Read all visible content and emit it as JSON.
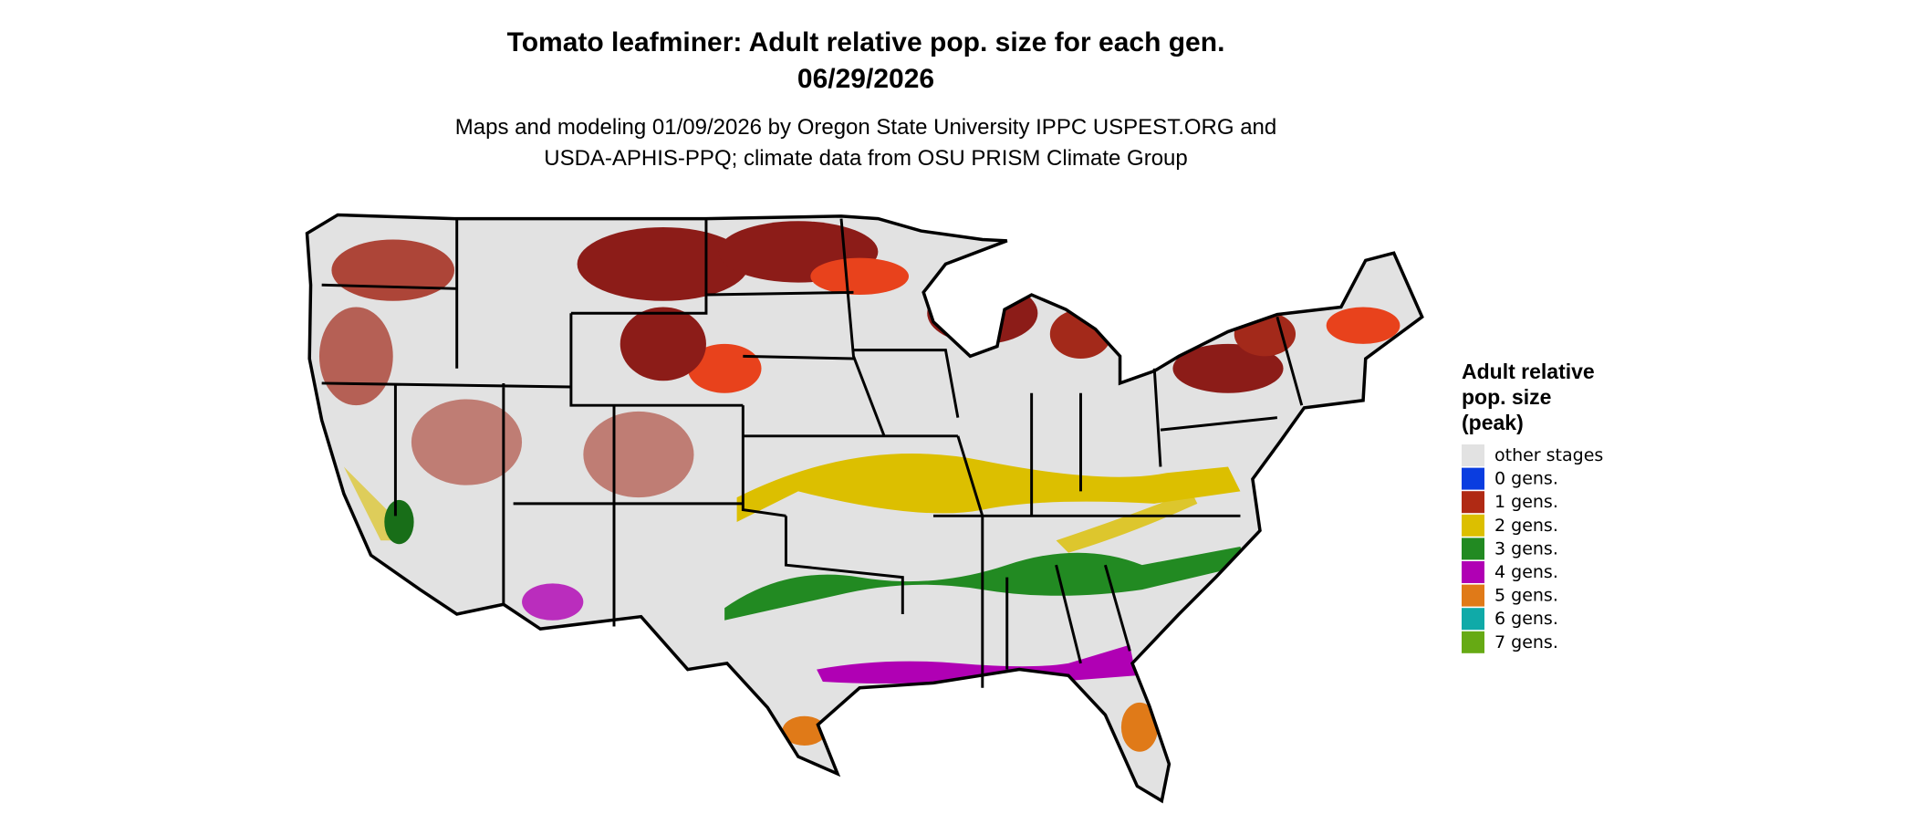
{
  "header": {
    "title": [
      "Tomato leafminer: Adult relative pop. size for each gen.",
      "06/29/2026"
    ],
    "subtitle": [
      "Maps and modeling 01/09/2026 by Oregon State University IPPC USPEST.ORG and",
      "USDA-APHIS-PPQ; climate data from OSU PRISM Climate Group"
    ]
  },
  "legend": {
    "title": [
      "Adult relative",
      "pop. size",
      "(peak)"
    ],
    "items": [
      {
        "label": "other stages",
        "color": "#e2e2e2"
      },
      {
        "label": "0 gens.",
        "color": "#0a3de0"
      },
      {
        "label": "1 gens.",
        "color": "#b02a14"
      },
      {
        "label": "2 gens.",
        "color": "#dcbf00"
      },
      {
        "label": "3 gens.",
        "color": "#228a22"
      },
      {
        "label": "4 gens.",
        "color": "#b000b4"
      },
      {
        "label": "5 gens.",
        "color": "#e07a18"
      },
      {
        "label": "6 gens.",
        "color": "#10aaa8"
      },
      {
        "label": "7 gens.",
        "color": "#66aa14"
      }
    ]
  }
}
